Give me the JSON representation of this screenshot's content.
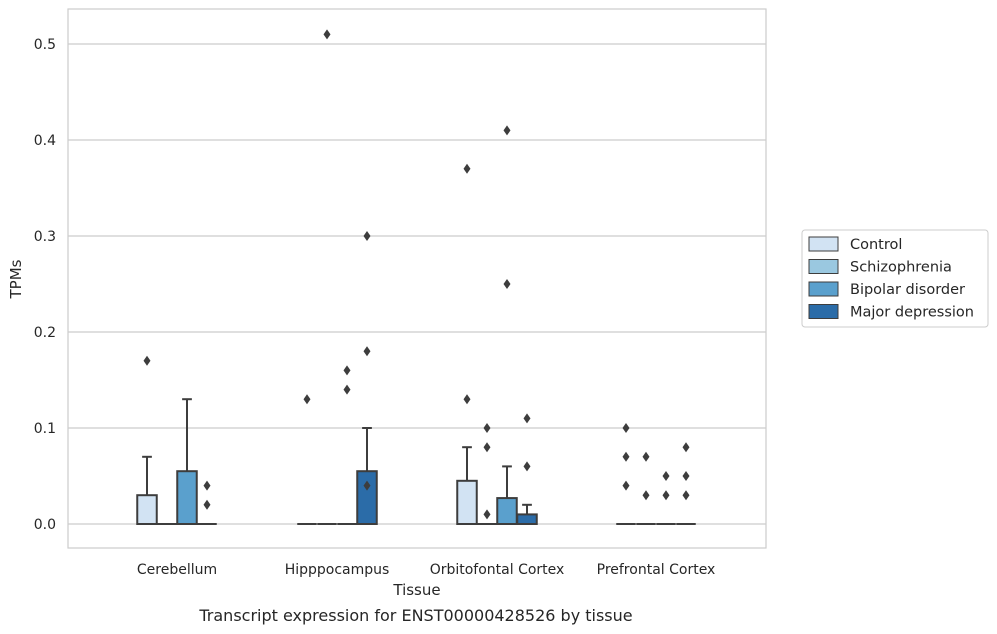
{
  "caption": "Transcript expression for ENST00000428526 by tissue",
  "chart_data": {
    "type": "box",
    "title": "",
    "xlabel": "Tissue",
    "ylabel": "TPMs",
    "ylim": [
      -0.025,
      0.535
    ],
    "yticks": [
      "0.0",
      "0.1",
      "0.2",
      "0.3",
      "0.4",
      "0.5"
    ],
    "grid": "horizontal",
    "legend_position": "right",
    "categories": [
      "Cerebellum",
      "Hipppocampus",
      "Orbitofontal Cortex",
      "Prefrontal Cortex"
    ],
    "colors": [
      "#d2e3f3",
      "#9ac8e0",
      "#5aa0cd",
      "#2b6ca8"
    ],
    "series": [
      {
        "name": "Control",
        "boxes": [
          {
            "q1": 0,
            "median": 0,
            "q3": 0.03,
            "whisker_low": 0,
            "whisker_high": 0.07,
            "outliers": [
              0.17
            ]
          },
          {
            "q1": 0,
            "median": 0,
            "q3": 0,
            "whisker_low": 0,
            "whisker_high": 0,
            "outliers": [
              0.13
            ]
          },
          {
            "q1": 0,
            "median": 0,
            "q3": 0.045,
            "whisker_low": 0,
            "whisker_high": 0.08,
            "outliers": [
              0.13,
              0.37
            ]
          },
          {
            "q1": 0,
            "median": 0,
            "q3": 0,
            "whisker_low": 0,
            "whisker_high": 0,
            "outliers": [
              0.04,
              0.07,
              0.1
            ]
          }
        ]
      },
      {
        "name": "Schizophrenia",
        "boxes": [
          {
            "q1": 0,
            "median": 0,
            "q3": 0,
            "whisker_low": 0,
            "whisker_high": 0,
            "outliers": []
          },
          {
            "q1": 0,
            "median": 0,
            "q3": 0,
            "whisker_low": 0,
            "whisker_high": 0,
            "outliers": [
              0.51
            ]
          },
          {
            "q1": 0,
            "median": 0,
            "q3": 0,
            "whisker_low": 0,
            "whisker_high": 0,
            "outliers": [
              0.01,
              0.08,
              0.1
            ]
          },
          {
            "q1": 0,
            "median": 0,
            "q3": 0,
            "whisker_low": 0,
            "whisker_high": 0,
            "outliers": [
              0.03,
              0.07
            ]
          }
        ]
      },
      {
        "name": "Bipolar disorder",
        "boxes": [
          {
            "q1": 0,
            "median": 0,
            "q3": 0.055,
            "whisker_low": 0,
            "whisker_high": 0.13,
            "outliers": []
          },
          {
            "q1": 0,
            "median": 0,
            "q3": 0,
            "whisker_low": 0,
            "whisker_high": 0,
            "outliers": [
              0.14,
              0.16
            ]
          },
          {
            "q1": 0,
            "median": 0,
            "q3": 0.027,
            "whisker_low": 0,
            "whisker_high": 0.06,
            "outliers": [
              0.25,
              0.41
            ]
          },
          {
            "q1": 0,
            "median": 0,
            "q3": 0,
            "whisker_low": 0,
            "whisker_high": 0,
            "outliers": [
              0.03,
              0.05
            ]
          }
        ]
      },
      {
        "name": "Major depression",
        "boxes": [
          {
            "q1": 0,
            "median": 0,
            "q3": 0,
            "whisker_low": 0,
            "whisker_high": 0,
            "outliers": [
              0.02,
              0.04
            ]
          },
          {
            "q1": 0,
            "median": 0,
            "q3": 0.055,
            "whisker_low": 0,
            "whisker_high": 0.1,
            "outliers": [
              0.04,
              0.18,
              0.3
            ]
          },
          {
            "q1": 0,
            "median": 0,
            "q3": 0.01,
            "whisker_low": 0,
            "whisker_high": 0.02,
            "outliers": [
              0.06,
              0.11
            ]
          },
          {
            "q1": 0,
            "median": 0,
            "q3": 0,
            "whisker_low": 0,
            "whisker_high": 0,
            "outliers": [
              0.03,
              0.05,
              0.08
            ]
          }
        ]
      }
    ]
  }
}
